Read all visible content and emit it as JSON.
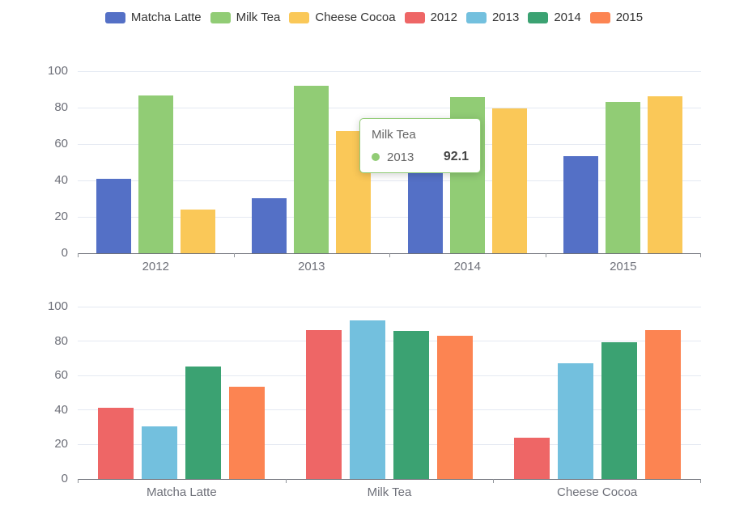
{
  "background_color": "#ffffff",
  "legend": {
    "items": [
      {
        "label": "Matcha Latte",
        "color": "#5470c6"
      },
      {
        "label": "Milk Tea",
        "color": "#91cc75"
      },
      {
        "label": "Cheese Cocoa",
        "color": "#fac858"
      },
      {
        "label": "2012",
        "color": "#ee6666"
      },
      {
        "label": "2013",
        "color": "#73c0de"
      },
      {
        "label": "2014",
        "color": "#3ba272"
      },
      {
        "label": "2015",
        "color": "#fc8452"
      }
    ]
  },
  "chart_data": [
    {
      "type": "bar",
      "title": "",
      "xlabel": "",
      "ylabel": "",
      "categories": [
        "2012",
        "2013",
        "2014",
        "2015"
      ],
      "series": [
        {
          "name": "Matcha Latte",
          "color": "#5470c6",
          "values": [
            41.1,
            30.4,
            65.1,
            53.3
          ]
        },
        {
          "name": "Milk Tea",
          "color": "#91cc75",
          "values": [
            86.5,
            92.1,
            85.7,
            83.1
          ]
        },
        {
          "name": "Cheese Cocoa",
          "color": "#fac858",
          "values": [
            24.1,
            67.2,
            79.5,
            86.4
          ]
        }
      ],
      "ylim": [
        0,
        100
      ],
      "yticks": [
        0,
        20,
        40,
        60,
        80,
        100
      ],
      "grid": true,
      "legend_position": "top-shared"
    },
    {
      "type": "bar",
      "title": "",
      "xlabel": "",
      "ylabel": "",
      "categories": [
        "Matcha Latte",
        "Milk Tea",
        "Cheese Cocoa"
      ],
      "series": [
        {
          "name": "2012",
          "color": "#ee6666",
          "values": [
            41.1,
            86.5,
            24.1
          ]
        },
        {
          "name": "2013",
          "color": "#73c0de",
          "values": [
            30.4,
            92.1,
            67.2
          ]
        },
        {
          "name": "2014",
          "color": "#3ba272",
          "values": [
            65.1,
            85.7,
            79.5
          ]
        },
        {
          "name": "2015",
          "color": "#fc8452",
          "values": [
            53.3,
            83.1,
            86.4
          ]
        }
      ],
      "ylim": [
        0,
        100
      ],
      "yticks": [
        0,
        20,
        40,
        60,
        80,
        100
      ],
      "grid": true,
      "legend_position": "top-shared"
    }
  ],
  "tooltip": {
    "title": "Milk Tea",
    "series_label": "2013",
    "value": "92.1",
    "dot_color": "#91cc75",
    "border_color": "#91cc75"
  }
}
